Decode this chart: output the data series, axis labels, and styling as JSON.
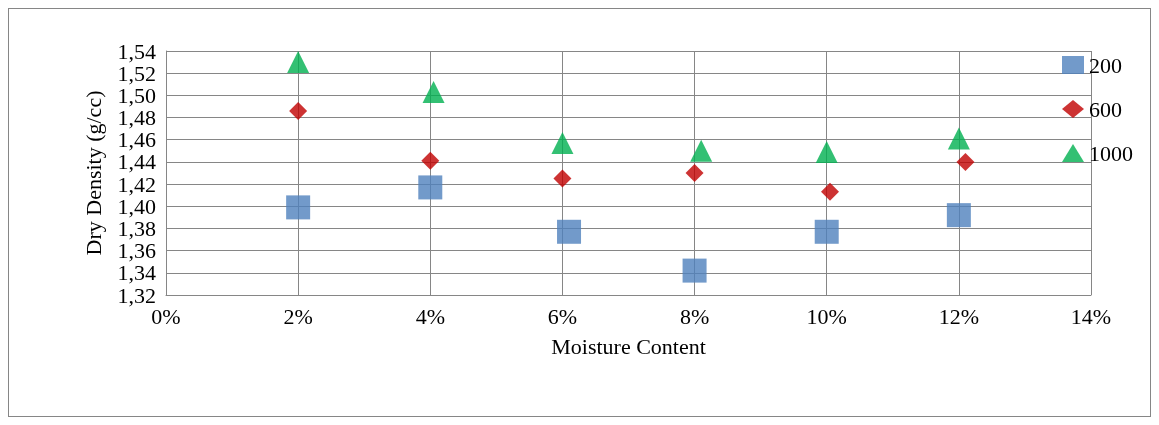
{
  "chart_data": {
    "type": "scatter",
    "xlabel": "Moisture Content",
    "ylabel": "Dry Density (g/cc)",
    "xlim": [
      0,
      14
    ],
    "xticks": [
      {
        "value": 0,
        "label": "0%"
      },
      {
        "value": 2,
        "label": "2%"
      },
      {
        "value": 4,
        "label": "4%"
      },
      {
        "value": 6,
        "label": "6%"
      },
      {
        "value": 8,
        "label": "8%"
      },
      {
        "value": 10,
        "label": "10%"
      },
      {
        "value": 12,
        "label": "12%"
      },
      {
        "value": 14,
        "label": "14%"
      }
    ],
    "ylim": [
      1.32,
      1.54
    ],
    "yticks": [
      {
        "value": 1.32,
        "label": "1,32"
      },
      {
        "value": 1.34,
        "label": "1,34"
      },
      {
        "value": 1.36,
        "label": "1,36"
      },
      {
        "value": 1.38,
        "label": "1,38"
      },
      {
        "value": 1.4,
        "label": "1,40"
      },
      {
        "value": 1.42,
        "label": "1,42"
      },
      {
        "value": 1.44,
        "label": "1,44"
      },
      {
        "value": 1.46,
        "label": "1,46"
      },
      {
        "value": 1.48,
        "label": "1,48"
      },
      {
        "value": 1.5,
        "label": "1,50"
      },
      {
        "value": 1.52,
        "label": "1,52"
      },
      {
        "value": 1.54,
        "label": "1,54"
      }
    ],
    "grid": true,
    "legend": "right",
    "series": [
      {
        "name": "200",
        "color": "#4f81bd",
        "marker": "square",
        "x": [
          2,
          4,
          6.1,
          8,
          10,
          12
        ],
        "values": [
          1.399,
          1.417,
          1.377,
          1.342,
          1.377,
          1.392
        ]
      },
      {
        "name": "600",
        "color": "#c00000",
        "marker": "diamond",
        "x": [
          2,
          4,
          6,
          8,
          10.05,
          12.1
        ],
        "values": [
          1.486,
          1.441,
          1.425,
          1.43,
          1.413,
          1.44
        ]
      },
      {
        "name": "1000",
        "color": "#00b050",
        "marker": "triangle",
        "x": [
          2,
          4.05,
          6,
          8.1,
          10,
          12
        ],
        "values": [
          1.53,
          1.503,
          1.457,
          1.45,
          1.449,
          1.461
        ]
      }
    ]
  }
}
